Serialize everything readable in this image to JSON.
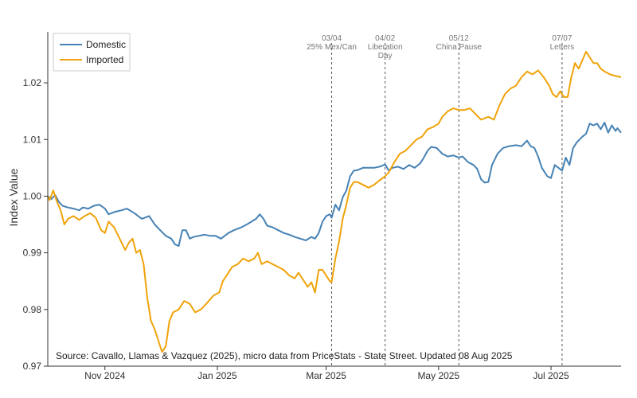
{
  "chart_data": {
    "type": "line",
    "title": "",
    "xlabel": "",
    "ylabel": "Index Value",
    "xlim": [
      "2024-10-01",
      "2025-08-08"
    ],
    "ylim": [
      0.97,
      1.029
    ],
    "y_ticks": [
      0.97,
      0.98,
      0.99,
      1.0,
      1.01,
      1.02
    ],
    "y_tick_labels": [
      "0.97",
      "0.98",
      "0.99",
      "1.00",
      "1.01",
      "1.02"
    ],
    "x_ticks": [
      {
        "date": "2024-11-01",
        "label": "Nov 2024"
      },
      {
        "date": "2025-01-01",
        "label": "Jan 2025"
      },
      {
        "date": "2025-03-01",
        "label": "Mar 2025"
      },
      {
        "date": "2025-05-01",
        "label": "May 2025"
      },
      {
        "date": "2025-07-01",
        "label": "Jul 2025"
      }
    ],
    "grid": false,
    "legend_position": "top-left",
    "annotations": [
      {
        "date": "2025-03-04",
        "lines": [
          "03/04",
          "25% Mex/Can"
        ]
      },
      {
        "date": "2025-04-02",
        "lines": [
          "04/02",
          "Liberation",
          "Day"
        ]
      },
      {
        "date": "2025-05-12",
        "lines": [
          "05/12",
          "China Pause"
        ]
      },
      {
        "date": "2025-07-07",
        "lines": [
          "07/07",
          "Letters"
        ]
      }
    ],
    "source": "Source: Cavallo, Llamas & Vazquez (2025), micro data from PriceStats - State Street. Updated 08 Aug 2025",
    "series": [
      {
        "name": "Domestic",
        "color": "#4682b4",
        "points": [
          [
            "2024-10-01",
            1.0
          ],
          [
            "2024-10-03",
            0.9995
          ],
          [
            "2024-10-05",
            1.0002
          ],
          [
            "2024-10-07",
            0.999
          ],
          [
            "2024-10-09",
            0.9983
          ],
          [
            "2024-10-12",
            0.998
          ],
          [
            "2024-10-15",
            0.9978
          ],
          [
            "2024-10-18",
            0.9975
          ],
          [
            "2024-10-20",
            0.998
          ],
          [
            "2024-10-23",
            0.9978
          ],
          [
            "2024-10-26",
            0.9983
          ],
          [
            "2024-10-29",
            0.9985
          ],
          [
            "2024-11-01",
            0.9978
          ],
          [
            "2024-11-03",
            0.9968
          ],
          [
            "2024-11-06",
            0.9972
          ],
          [
            "2024-11-10",
            0.9975
          ],
          [
            "2024-11-13",
            0.9978
          ],
          [
            "2024-11-17",
            0.997
          ],
          [
            "2024-11-21",
            0.996
          ],
          [
            "2024-11-25",
            0.9965
          ],
          [
            "2024-11-28",
            0.995
          ],
          [
            "2024-12-01",
            0.994
          ],
          [
            "2024-12-04",
            0.993
          ],
          [
            "2024-12-07",
            0.9925
          ],
          [
            "2024-12-09",
            0.9915
          ],
          [
            "2024-12-11",
            0.9912
          ],
          [
            "2024-12-13",
            0.994
          ],
          [
            "2024-12-15",
            0.994
          ],
          [
            "2024-12-17",
            0.9925
          ],
          [
            "2024-12-19",
            0.9928
          ],
          [
            "2024-12-22",
            0.993
          ],
          [
            "2024-12-25",
            0.9932
          ],
          [
            "2024-12-28",
            0.993
          ],
          [
            "2024-12-31",
            0.993
          ],
          [
            "2025-01-03",
            0.9925
          ],
          [
            "2025-01-07",
            0.9935
          ],
          [
            "2025-01-10",
            0.994
          ],
          [
            "2025-01-14",
            0.9945
          ],
          [
            "2025-01-18",
            0.9952
          ],
          [
            "2025-01-22",
            0.996
          ],
          [
            "2025-01-24",
            0.9968
          ],
          [
            "2025-01-26",
            0.996
          ],
          [
            "2025-01-28",
            0.9948
          ],
          [
            "2025-01-31",
            0.9945
          ],
          [
            "2025-02-03",
            0.994
          ],
          [
            "2025-02-06",
            0.9935
          ],
          [
            "2025-02-09",
            0.9932
          ],
          [
            "2025-02-12",
            0.9928
          ],
          [
            "2025-02-15",
            0.9925
          ],
          [
            "2025-02-18",
            0.9922
          ],
          [
            "2025-02-21",
            0.9928
          ],
          [
            "2025-02-23",
            0.9925
          ],
          [
            "2025-02-25",
            0.9935
          ],
          [
            "2025-02-27",
            0.9955
          ],
          [
            "2025-03-01",
            0.9965
          ],
          [
            "2025-03-03",
            0.9968
          ],
          [
            "2025-03-04",
            0.9962
          ],
          [
            "2025-03-06",
            0.9985
          ],
          [
            "2025-03-08",
            0.9975
          ],
          [
            "2025-03-10",
            0.9998
          ],
          [
            "2025-03-12",
            1.001
          ],
          [
            "2025-03-14",
            1.0035
          ],
          [
            "2025-03-16",
            1.0045
          ],
          [
            "2025-03-18",
            1.0046
          ],
          [
            "2025-03-21",
            1.005
          ],
          [
            "2025-03-24",
            1.005
          ],
          [
            "2025-03-27",
            1.005
          ],
          [
            "2025-03-30",
            1.0052
          ],
          [
            "2025-04-02",
            1.0056
          ],
          [
            "2025-04-04",
            1.0045
          ],
          [
            "2025-04-06",
            1.005
          ],
          [
            "2025-04-09",
            1.0052
          ],
          [
            "2025-04-12",
            1.0048
          ],
          [
            "2025-04-15",
            1.0055
          ],
          [
            "2025-04-18",
            1.005
          ],
          [
            "2025-04-21",
            1.0058
          ],
          [
            "2025-04-23",
            1.0068
          ],
          [
            "2025-04-25",
            1.008
          ],
          [
            "2025-04-27",
            1.0087
          ],
          [
            "2025-04-30",
            1.0085
          ],
          [
            "2025-05-03",
            1.0075
          ],
          [
            "2025-05-06",
            1.007
          ],
          [
            "2025-05-09",
            1.0072
          ],
          [
            "2025-05-12",
            1.0068
          ],
          [
            "2025-05-14",
            1.007
          ],
          [
            "2025-05-17",
            1.006
          ],
          [
            "2025-05-20",
            1.0055
          ],
          [
            "2025-05-22",
            1.0048
          ],
          [
            "2025-05-24",
            1.003
          ],
          [
            "2025-05-26",
            1.0024
          ],
          [
            "2025-05-28",
            1.0025
          ],
          [
            "2025-05-30",
            1.0055
          ],
          [
            "2025-06-02",
            1.0075
          ],
          [
            "2025-06-05",
            1.0085
          ],
          [
            "2025-06-08",
            1.0088
          ],
          [
            "2025-06-12",
            1.009
          ],
          [
            "2025-06-15",
            1.0088
          ],
          [
            "2025-06-18",
            1.0098
          ],
          [
            "2025-06-20",
            1.0088
          ],
          [
            "2025-06-22",
            1.0085
          ],
          [
            "2025-06-24",
            1.007
          ],
          [
            "2025-06-26",
            1.005
          ],
          [
            "2025-06-29",
            1.0035
          ],
          [
            "2025-07-01",
            1.0032
          ],
          [
            "2025-07-03",
            1.0055
          ],
          [
            "2025-07-05",
            1.005
          ],
          [
            "2025-07-07",
            1.0045
          ],
          [
            "2025-07-09",
            1.0068
          ],
          [
            "2025-07-11",
            1.0055
          ],
          [
            "2025-07-13",
            1.0085
          ],
          [
            "2025-07-15",
            1.0095
          ],
          [
            "2025-07-18",
            1.0105
          ],
          [
            "2025-07-20",
            1.011
          ],
          [
            "2025-07-22",
            1.0128
          ],
          [
            "2025-07-24",
            1.0125
          ],
          [
            "2025-07-26",
            1.0128
          ],
          [
            "2025-07-28",
            1.0118
          ],
          [
            "2025-07-30",
            1.013
          ],
          [
            "2025-08-01",
            1.0112
          ],
          [
            "2025-08-03",
            1.0125
          ],
          [
            "2025-08-05",
            1.0115
          ],
          [
            "2025-08-06",
            1.012
          ],
          [
            "2025-08-08",
            1.0112
          ]
        ]
      },
      {
        "name": "Imported",
        "color": "#f0a30a",
        "points": [
          [
            "2024-10-01",
            1.0
          ],
          [
            "2024-10-02",
            0.9993
          ],
          [
            "2024-10-04",
            1.001
          ],
          [
            "2024-10-06",
            0.999
          ],
          [
            "2024-10-08",
            0.9975
          ],
          [
            "2024-10-10",
            0.995
          ],
          [
            "2024-10-12",
            0.996
          ],
          [
            "2024-10-15",
            0.9965
          ],
          [
            "2024-10-18",
            0.9958
          ],
          [
            "2024-10-21",
            0.9965
          ],
          [
            "2024-10-24",
            0.997
          ],
          [
            "2024-10-27",
            0.9962
          ],
          [
            "2024-10-30",
            0.994
          ],
          [
            "2024-11-01",
            0.9935
          ],
          [
            "2024-11-03",
            0.9955
          ],
          [
            "2024-11-06",
            0.9945
          ],
          [
            "2024-11-09",
            0.9925
          ],
          [
            "2024-11-12",
            0.9905
          ],
          [
            "2024-11-14",
            0.9918
          ],
          [
            "2024-11-16",
            0.9925
          ],
          [
            "2024-11-18",
            0.99
          ],
          [
            "2024-11-20",
            0.9905
          ],
          [
            "2024-11-22",
            0.988
          ],
          [
            "2024-11-24",
            0.982
          ],
          [
            "2024-11-26",
            0.978
          ],
          [
            "2024-11-28",
            0.9765
          ],
          [
            "2024-11-30",
            0.9745
          ],
          [
            "2024-12-02",
            0.9725
          ],
          [
            "2024-12-04",
            0.9735
          ],
          [
            "2024-12-06",
            0.978
          ],
          [
            "2024-12-08",
            0.9795
          ],
          [
            "2024-12-11",
            0.98
          ],
          [
            "2024-12-14",
            0.9815
          ],
          [
            "2024-12-17",
            0.981
          ],
          [
            "2024-12-20",
            0.9795
          ],
          [
            "2024-12-23",
            0.98
          ],
          [
            "2024-12-26",
            0.981
          ],
          [
            "2024-12-30",
            0.9825
          ],
          [
            "2025-01-02",
            0.983
          ],
          [
            "2025-01-04",
            0.985
          ],
          [
            "2025-01-06",
            0.986
          ],
          [
            "2025-01-09",
            0.9875
          ],
          [
            "2025-01-12",
            0.988
          ],
          [
            "2025-01-15",
            0.989
          ],
          [
            "2025-01-18",
            0.9885
          ],
          [
            "2025-01-21",
            0.989
          ],
          [
            "2025-01-23",
            0.99
          ],
          [
            "2025-01-25",
            0.988
          ],
          [
            "2025-01-28",
            0.9885
          ],
          [
            "2025-01-31",
            0.988
          ],
          [
            "2025-02-03",
            0.9875
          ],
          [
            "2025-02-06",
            0.987
          ],
          [
            "2025-02-09",
            0.986
          ],
          [
            "2025-02-12",
            0.9855
          ],
          [
            "2025-02-14",
            0.9865
          ],
          [
            "2025-02-17",
            0.985
          ],
          [
            "2025-02-19",
            0.984
          ],
          [
            "2025-02-21",
            0.9848
          ],
          [
            "2025-02-23",
            0.983
          ],
          [
            "2025-02-25",
            0.987
          ],
          [
            "2025-02-27",
            0.987
          ],
          [
            "2025-03-01",
            0.986
          ],
          [
            "2025-03-03",
            0.985
          ],
          [
            "2025-03-04",
            0.9848
          ],
          [
            "2025-03-06",
            0.989
          ],
          [
            "2025-03-08",
            0.992
          ],
          [
            "2025-03-10",
            0.996
          ],
          [
            "2025-03-12",
            0.9985
          ],
          [
            "2025-03-14",
            1.0015
          ],
          [
            "2025-03-16",
            1.0025
          ],
          [
            "2025-03-18",
            1.0025
          ],
          [
            "2025-03-21",
            1.002
          ],
          [
            "2025-03-24",
            1.0015
          ],
          [
            "2025-03-27",
            1.002
          ],
          [
            "2025-03-30",
            1.0028
          ],
          [
            "2025-04-02",
            1.0035
          ],
          [
            "2025-04-04",
            1.0042
          ],
          [
            "2025-04-07",
            1.006
          ],
          [
            "2025-04-10",
            1.0075
          ],
          [
            "2025-04-13",
            1.008
          ],
          [
            "2025-04-16",
            1.009
          ],
          [
            "2025-04-19",
            1.01
          ],
          [
            "2025-04-22",
            1.0105
          ],
          [
            "2025-04-25",
            1.0118
          ],
          [
            "2025-04-28",
            1.0122
          ],
          [
            "2025-05-01",
            1.0128
          ],
          [
            "2025-05-03",
            1.014
          ],
          [
            "2025-05-06",
            1.015
          ],
          [
            "2025-05-09",
            1.0155
          ],
          [
            "2025-05-12",
            1.0152
          ],
          [
            "2025-05-15",
            1.0152
          ],
          [
            "2025-05-18",
            1.0155
          ],
          [
            "2025-05-21",
            1.0145
          ],
          [
            "2025-05-24",
            1.0135
          ],
          [
            "2025-05-28",
            1.014
          ],
          [
            "2025-05-31",
            1.0135
          ],
          [
            "2025-06-03",
            1.016
          ],
          [
            "2025-06-06",
            1.018
          ],
          [
            "2025-06-09",
            1.019
          ],
          [
            "2025-06-12",
            1.0195
          ],
          [
            "2025-06-15",
            1.021
          ],
          [
            "2025-06-18",
            1.022
          ],
          [
            "2025-06-21",
            1.0215
          ],
          [
            "2025-06-24",
            1.0222
          ],
          [
            "2025-06-27",
            1.021
          ],
          [
            "2025-06-30",
            1.0195
          ],
          [
            "2025-07-02",
            1.018
          ],
          [
            "2025-07-04",
            1.0175
          ],
          [
            "2025-07-06",
            1.0185
          ],
          [
            "2025-07-08",
            1.0175
          ],
          [
            "2025-07-10",
            1.0175
          ],
          [
            "2025-07-12",
            1.021
          ],
          [
            "2025-07-14",
            1.0235
          ],
          [
            "2025-07-16",
            1.0225
          ],
          [
            "2025-07-18",
            1.024
          ],
          [
            "2025-07-20",
            1.0255
          ],
          [
            "2025-07-22",
            1.0245
          ],
          [
            "2025-07-24",
            1.0235
          ],
          [
            "2025-07-26",
            1.0235
          ],
          [
            "2025-07-28",
            1.0225
          ],
          [
            "2025-07-30",
            1.022
          ],
          [
            "2025-08-02",
            1.0215
          ],
          [
            "2025-08-05",
            1.0212
          ],
          [
            "2025-08-08",
            1.021
          ]
        ]
      }
    ]
  }
}
